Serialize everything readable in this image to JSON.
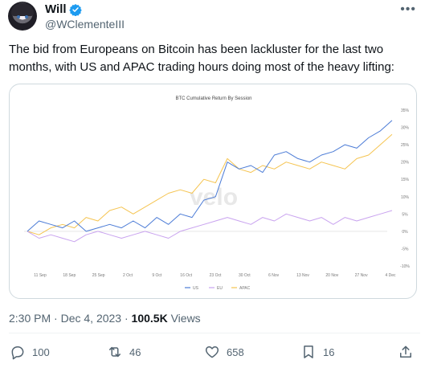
{
  "author": {
    "display_name": "Will",
    "handle": "@WClementeIII"
  },
  "tweet": {
    "text": "The bid from Europeans on Bitcoin has been lackluster for the last two months, with US and APAC trading hours doing most of the heavy lifting:",
    "time": "2:30 PM",
    "date": "Dec 4, 2023",
    "views_count": "100.5K",
    "views_label": "Views"
  },
  "actions": {
    "replies": "100",
    "reposts": "46",
    "likes": "658",
    "bookmarks": "16"
  },
  "icons": {
    "verified": "verified-badge-icon",
    "more": "more-icon",
    "reply": "reply-icon",
    "repost": "repost-icon",
    "like": "heart-icon",
    "bookmark": "bookmark-icon",
    "share": "share-icon"
  },
  "colors": {
    "us": "#4b7bd6",
    "eu": "#c9a3ef",
    "apac": "#f5c451",
    "verified": "#1d9bf0"
  },
  "chart_data": {
    "type": "line",
    "title": "BTC Cumulative Return By Session",
    "watermark": "velo",
    "xlabel": "",
    "ylabel": "",
    "x_ticks": [
      "11 Sep",
      "18 Sep",
      "25 Sep",
      "2 Oct",
      "9 Oct",
      "16 Oct",
      "23 Oct",
      "30 Oct",
      "6 Nov",
      "13 Nov",
      "20 Nov",
      "27 Nov",
      "4 Dec"
    ],
    "y_ticks": [
      "35%",
      "30%",
      "25%",
      "20%",
      "15%",
      "10%",
      "5%",
      "0%",
      "-5%",
      "-10%"
    ],
    "ylim": [
      -10,
      35
    ],
    "y_axis_side": "right",
    "legend_position": "bottom",
    "series": [
      {
        "name": "US",
        "values": [
          0,
          3,
          2,
          1,
          3,
          0,
          1,
          2,
          1,
          3,
          1,
          4,
          2,
          5,
          4,
          9,
          10,
          20,
          18,
          19,
          17,
          22,
          23,
          21,
          20,
          22,
          23,
          25,
          24,
          27,
          29,
          32
        ]
      },
      {
        "name": "EU",
        "values": [
          0,
          -2,
          -1,
          -2,
          -3,
          -1,
          0,
          -1,
          -2,
          -1,
          0,
          -1,
          -2,
          0,
          1,
          2,
          3,
          4,
          3,
          2,
          4,
          3,
          5,
          4,
          3,
          4,
          2,
          4,
          3,
          4,
          5,
          6
        ]
      },
      {
        "name": "APAC",
        "values": [
          0,
          -1,
          1,
          2,
          1,
          4,
          3,
          6,
          7,
          5,
          7,
          9,
          11,
          12,
          11,
          15,
          14,
          21,
          18,
          17,
          19,
          18,
          20,
          19,
          18,
          20,
          19,
          18,
          21,
          22,
          25,
          28
        ]
      }
    ]
  }
}
